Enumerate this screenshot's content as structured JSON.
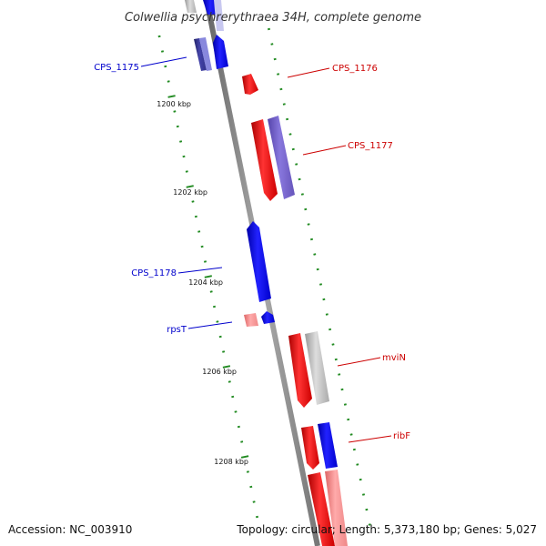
{
  "title": "Colwellia psychrerythraea 34H, complete genome",
  "accession": "Accession: NC_003910",
  "topology": "Topology: circular; Length: 5,373,180 bp; Genes: 5,027",
  "scale_labels": [
    "1200 kbp",
    "1202 kbp",
    "1204 kbp",
    "1206 kbp",
    "1208 kbp"
  ],
  "gene_labels": [
    {
      "text": "CPS_1175",
      "color": "#0000cc"
    },
    {
      "text": "CPS_1176",
      "color": "#cc0000"
    },
    {
      "text": "CPS_1177",
      "color": "#cc0000"
    },
    {
      "text": "CPS_1178",
      "color": "#0000cc"
    },
    {
      "text": "rpsT",
      "color": "#0000cc"
    },
    {
      "text": "mviN",
      "color": "#cc0000"
    },
    {
      "text": "ribF",
      "color": "#cc0000"
    }
  ],
  "colors": {
    "forward_strand": "#ff0000",
    "reverse_strand": "#0000ff",
    "purple_gene": "#7766cc",
    "grey_gene": "#bbbbbb",
    "pink_gene": "#ee8888",
    "backbone": "#888888",
    "ticks": "#228b22"
  }
}
